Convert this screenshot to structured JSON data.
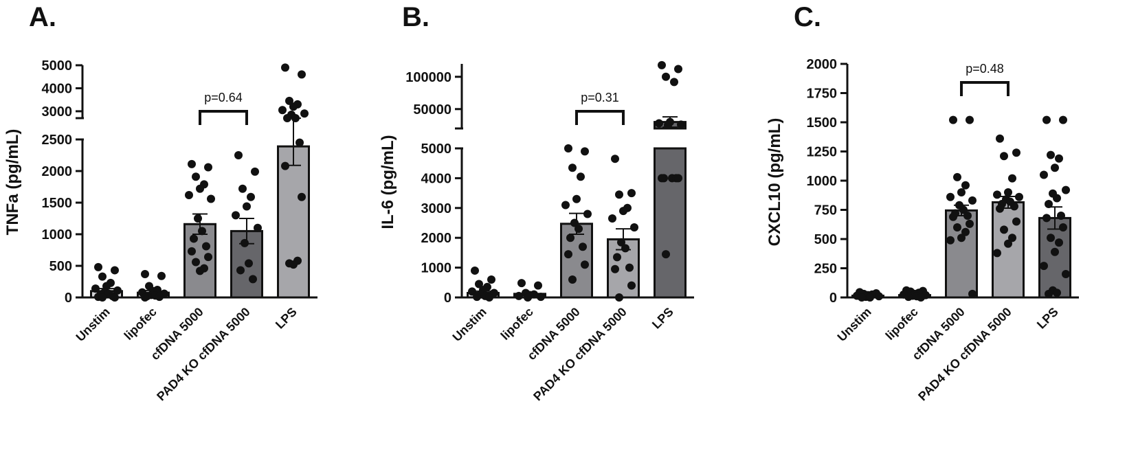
{
  "chart_data": [
    {
      "panel": "A.",
      "type": "bar",
      "ylabel": "TNFa (pg/mL)",
      "categories": [
        "Unstim",
        "lipofec",
        "cfDNA 5000",
        "PAD4 KO cfDNA 5000",
        "LPS"
      ],
      "bar_colors": [
        "#d3d3d6",
        "#d3d3d6",
        "#8a8a8e",
        "#66666a",
        "#a6a6aa"
      ],
      "means": [
        100,
        75,
        1160,
        1050,
        2390
      ],
      "sem": [
        40,
        35,
        160,
        200,
        300
      ],
      "points": [
        [
          480,
          430,
          330,
          230,
          180,
          140,
          110,
          80,
          60,
          40,
          20,
          10,
          0,
          0
        ],
        [
          370,
          340,
          180,
          120,
          100,
          80,
          60,
          40,
          30,
          20,
          10,
          0
        ],
        [
          2110,
          2060,
          1910,
          1790,
          1720,
          1620,
          1560,
          1250,
          1050,
          930,
          810,
          730,
          640,
          560,
          460,
          420
        ],
        [
          2250,
          1990,
          1720,
          1590,
          1440,
          1300,
          1100,
          860,
          540,
          430,
          290
        ],
        [
          4900,
          4600,
          3450,
          3300,
          3200,
          3050,
          2900,
          2850,
          2700,
          2600,
          2450,
          2080,
          1590,
          540,
          580,
          520
        ]
      ],
      "y_ticks_lower": [
        0,
        500,
        1000,
        1500,
        2000,
        2500
      ],
      "y_ticks_upper": [
        3000,
        4000,
        5000
      ],
      "y_break": [
        2500,
        2700
      ],
      "ylim": [
        0,
        5000
      ],
      "comparison": {
        "from": "cfDNA 5000",
        "to": "PAD4 KO cfDNA 5000",
        "label": "p=0.64"
      }
    },
    {
      "panel": "B.",
      "type": "bar",
      "ylabel": "IL-6 (pg/mL)",
      "categories": [
        "Unstim",
        "lipofec",
        "cfDNA 5000",
        "PAD4 KO cfDNA 5000",
        "LPS"
      ],
      "bar_colors": [
        "#d3d3d6",
        "#d3d3d6",
        "#8a8a8e",
        "#a6a6aa",
        "#66666a"
      ],
      "means": [
        150,
        120,
        2470,
        1950,
        30000
      ],
      "sem": [
        60,
        50,
        350,
        350,
        8000
      ],
      "points": [
        [
          900,
          600,
          450,
          350,
          250,
          200,
          150,
          100,
          50,
          20,
          0
        ],
        [
          480,
          400,
          150,
          100,
          80,
          50,
          20,
          0
        ],
        [
          5000,
          4900,
          4350,
          4050,
          3300,
          3100,
          2800,
          2500,
          2300,
          2000,
          1700,
          1450,
          1100,
          600
        ],
        [
          4650,
          3500,
          3450,
          3000,
          2900,
          2650,
          2350,
          1850,
          1650,
          1350,
          1000,
          950,
          400,
          0
        ],
        [
          118000,
          112000,
          100000,
          92000,
          30000,
          28000,
          26000,
          25000,
          4000,
          4000,
          4000,
          4000,
          4000,
          1450
        ]
      ],
      "y_ticks_lower": [
        0,
        1000,
        2000,
        3000,
        4000,
        5000
      ],
      "y_ticks_upper": [
        50000,
        100000
      ],
      "y_break": [
        5000,
        20000
      ],
      "ylim": [
        0,
        120000
      ],
      "comparison": {
        "from": "cfDNA 5000",
        "to": "PAD4 KO cfDNA 5000",
        "label": "p=0.31"
      }
    },
    {
      "panel": "C.",
      "type": "bar",
      "ylabel": "CXCL10 (pg/mL)",
      "categories": [
        "Unstim",
        "lipofec",
        "cfDNA 5000",
        "PAD4 KO cfDNA 5000",
        "LPS"
      ],
      "bar_colors": [
        "#d3d3d6",
        "#d3d3d6",
        "#8a8a8e",
        "#a6a6aa",
        "#66666a"
      ],
      "means": [
        15,
        20,
        745,
        815,
        680
      ],
      "sem": [
        8,
        8,
        45,
        50,
        95
      ],
      "points": [
        [
          45,
          35,
          30,
          25,
          20,
          15,
          10,
          5,
          0,
          0
        ],
        [
          60,
          55,
          50,
          40,
          30,
          25,
          20,
          15,
          10,
          5,
          0
        ],
        [
          1520,
          1520,
          1030,
          960,
          900,
          860,
          830,
          790,
          750,
          720,
          700,
          690,
          630,
          600,
          560,
          510,
          490,
          30
        ],
        [
          1360,
          1240,
          1210,
          1020,
          900,
          880,
          860,
          840,
          820,
          800,
          780,
          760,
          650,
          580,
          510,
          460,
          380
        ],
        [
          1520,
          1520,
          1220,
          1190,
          1110,
          1050,
          920,
          890,
          850,
          800,
          700,
          680,
          600,
          510,
          470,
          390,
          270,
          200,
          60,
          40,
          30
        ]
      ],
      "y_ticks_lower": [
        0,
        250,
        500,
        750,
        1000,
        1250,
        1500,
        1750,
        2000
      ],
      "y_ticks_upper": [],
      "y_break": null,
      "ylim": [
        0,
        2000
      ],
      "comparison": {
        "from": "cfDNA 5000",
        "to": "PAD4 KO cfDNA 5000",
        "label": "p=0.48"
      }
    }
  ]
}
